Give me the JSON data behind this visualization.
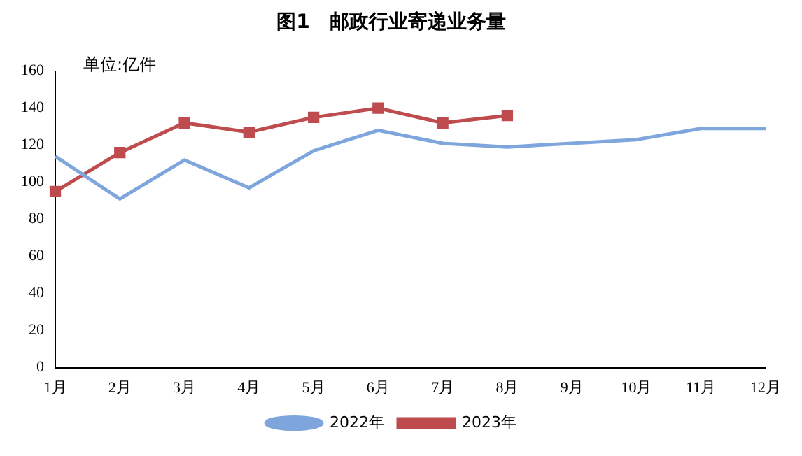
{
  "chart_data": {
    "type": "line",
    "title": "图1　邮政行业寄递业务量",
    "annotations": [
      "单位:亿件"
    ],
    "categories": [
      "1月",
      "2月",
      "3月",
      "4月",
      "5月",
      "6月",
      "7月",
      "8月",
      "9月",
      "10月",
      "11月",
      "12月"
    ],
    "series": [
      {
        "name": "2022年",
        "color": "#7ea6dc",
        "marker": "none",
        "values": [
          114,
          91,
          112,
          97,
          117,
          128,
          121,
          119,
          121,
          123,
          129,
          129
        ]
      },
      {
        "name": "2023年",
        "color": "#be4b4e",
        "marker": "square",
        "values": [
          95,
          116,
          132,
          127,
          135,
          140,
          132,
          136,
          null,
          null,
          null,
          null
        ]
      }
    ],
    "ylim": [
      0,
      160
    ],
    "yticks": [
      0,
      20,
      40,
      60,
      80,
      100,
      120,
      140,
      160
    ],
    "grid": false,
    "legend": "bottom"
  }
}
